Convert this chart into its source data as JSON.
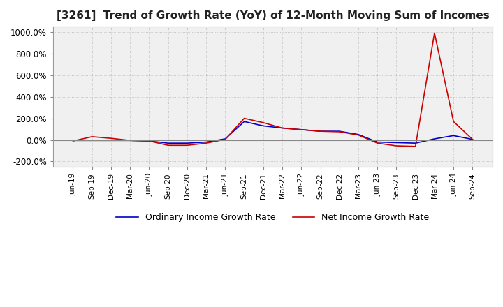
{
  "title": "[3261]  Trend of Growth Rate (YoY) of 12-Month Moving Sum of Incomes",
  "title_fontsize": 11,
  "ylim": [
    -250,
    1050
  ],
  "yticks": [
    -200,
    0,
    200,
    400,
    600,
    800,
    1000
  ],
  "ytick_labels": [
    "-200.0%",
    "0.0%",
    "200.0%",
    "400.0%",
    "600.0%",
    "800.0%",
    "1000.0%"
  ],
  "background_color": "#ffffff",
  "plot_bg_color": "#f0f0f0",
  "grid_color": "#aaaaaa",
  "ordinary_color": "#0000cc",
  "net_color": "#cc0000",
  "legend_ordinary": "Ordinary Income Growth Rate",
  "legend_net": "Net Income Growth Rate",
  "x_labels": [
    "Jun-19",
    "Sep-19",
    "Dec-19",
    "Mar-20",
    "Jun-20",
    "Sep-20",
    "Dec-20",
    "Mar-21",
    "Jun-21",
    "Sep-21",
    "Dec-21",
    "Mar-22",
    "Jun-22",
    "Sep-22",
    "Dec-22",
    "Mar-23",
    "Jun-23",
    "Sep-23",
    "Dec-23",
    "Mar-24",
    "Jun-24",
    "Sep-24"
  ],
  "ordinary_values": [
    -5,
    -5,
    -5,
    -5,
    -10,
    -30,
    -30,
    -20,
    10,
    170,
    130,
    110,
    95,
    80,
    80,
    50,
    -20,
    -25,
    -30,
    10,
    40,
    5
  ],
  "net_values": [
    -10,
    30,
    15,
    -5,
    -10,
    -50,
    -50,
    -30,
    5,
    200,
    160,
    110,
    95,
    80,
    75,
    45,
    -30,
    -55,
    -60,
    990,
    170,
    5
  ]
}
